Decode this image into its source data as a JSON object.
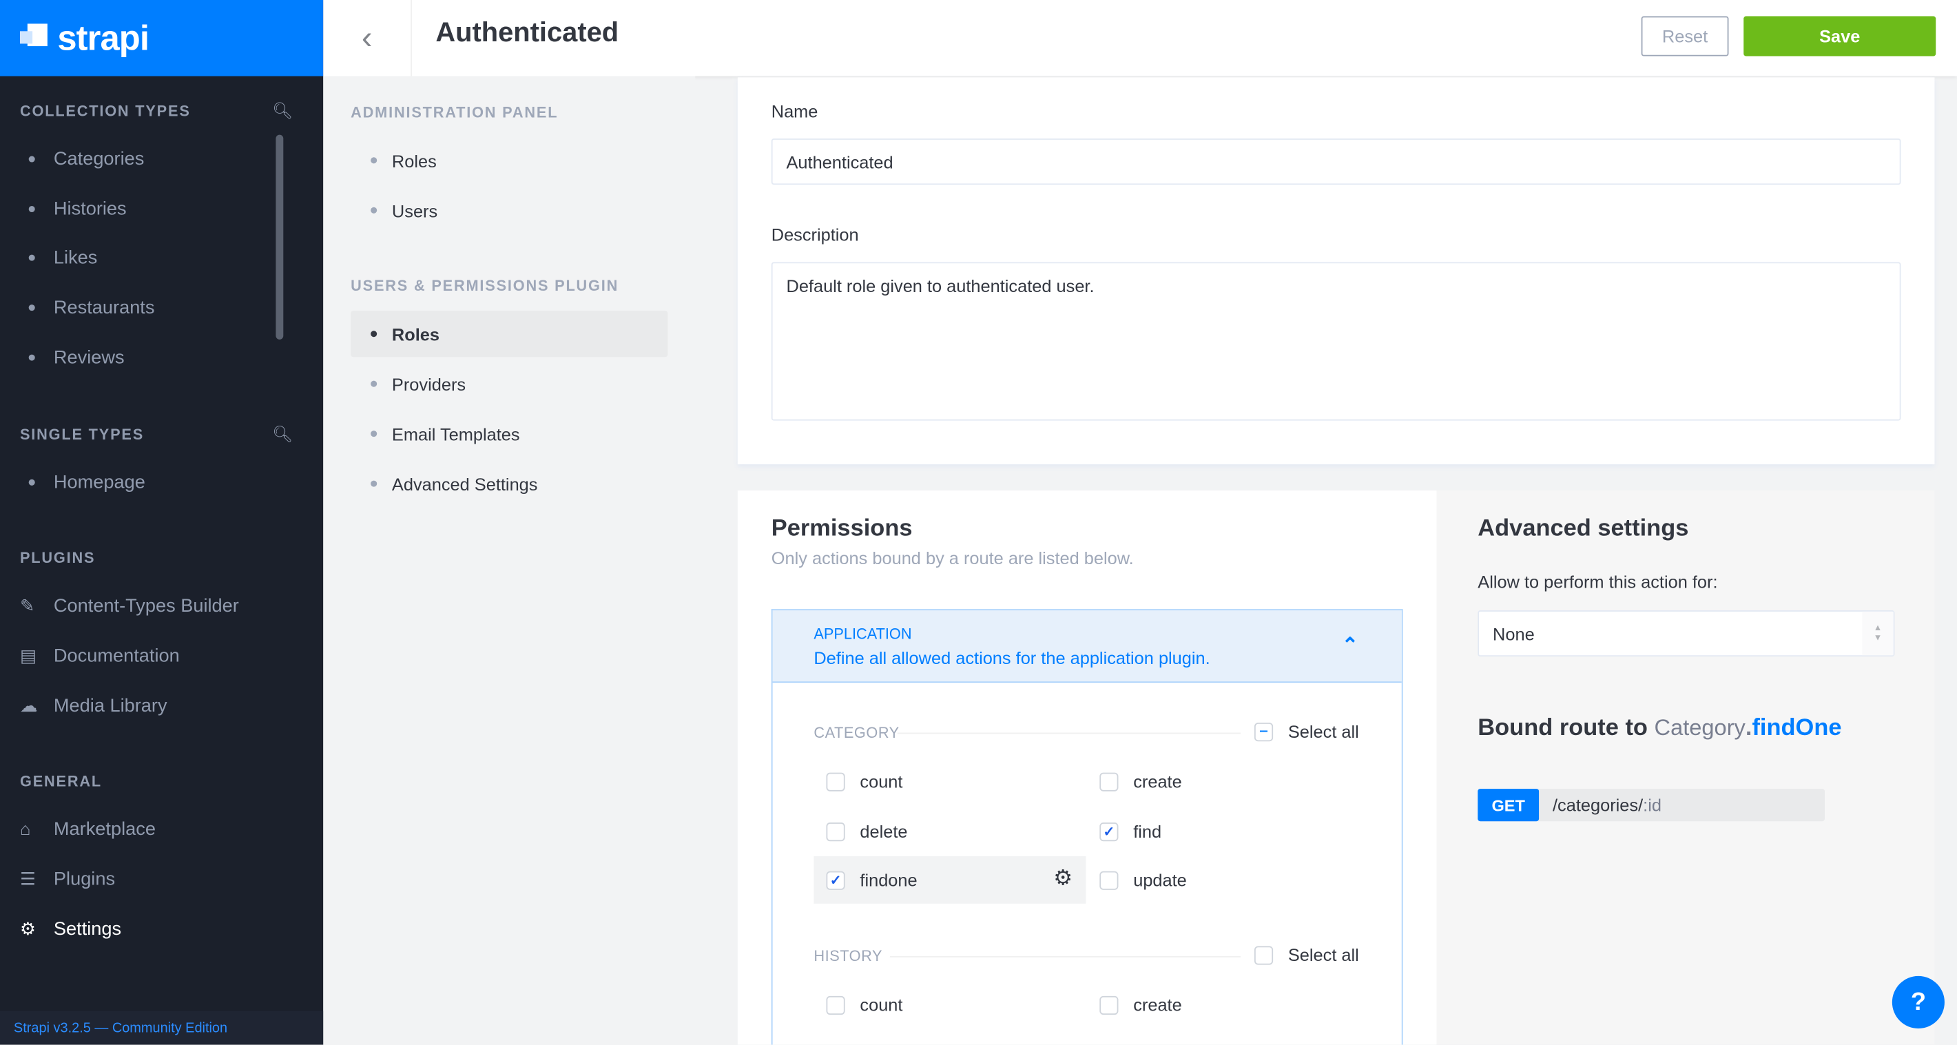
{
  "brand": {
    "name": "strapi",
    "color": "#007eff"
  },
  "sidebar": {
    "sections": [
      {
        "title": "COLLECTION TYPES",
        "items": [
          "Categories",
          "Histories",
          "Likes",
          "Restaurants",
          "Reviews"
        ]
      },
      {
        "title": "SINGLE TYPES",
        "items": [
          "Homepage"
        ]
      },
      {
        "title": "PLUGINS",
        "items": [
          "Content-Types Builder",
          "Documentation",
          "Media Library"
        ]
      },
      {
        "title": "GENERAL",
        "items": [
          "Marketplace",
          "Plugins",
          "Settings"
        ]
      }
    ],
    "active": "Settings",
    "footer": "Strapi v3.2.5 — Community Edition"
  },
  "header": {
    "title": "Authenticated",
    "reset": "Reset",
    "save": "Save",
    "save_color": "#6dbb1a"
  },
  "subnav": {
    "sections": [
      {
        "title": "ADMINISTRATION PANEL",
        "items": [
          "Roles",
          "Users"
        ]
      },
      {
        "title": "USERS & PERMISSIONS PLUGIN",
        "items": [
          "Roles",
          "Providers",
          "Email Templates",
          "Advanced Settings"
        ]
      }
    ],
    "active": "Roles"
  },
  "form": {
    "name_label": "Name",
    "name_value": "Authenticated",
    "description_label": "Description",
    "description_value": "Default role given to authenticated user."
  },
  "permissions": {
    "title": "Permissions",
    "subtitle": "Only actions bound by a route are listed below.",
    "plugin": {
      "name": "APPLICATION",
      "description": "Define all allowed actions for the application plugin.",
      "expanded": true
    },
    "groups": [
      {
        "name": "CATEGORY",
        "select_all": "Select all",
        "select_all_state": "indeterminate",
        "actions": [
          {
            "name": "count",
            "checked": false
          },
          {
            "name": "create",
            "checked": false
          },
          {
            "name": "delete",
            "checked": false
          },
          {
            "name": "find",
            "checked": true
          },
          {
            "name": "findone",
            "checked": true,
            "selected": true
          },
          {
            "name": "update",
            "checked": false
          }
        ]
      },
      {
        "name": "HISTORY",
        "select_all": "Select all",
        "select_all_state": "unchecked",
        "actions": [
          {
            "name": "count",
            "checked": false
          },
          {
            "name": "create",
            "checked": false
          }
        ]
      }
    ]
  },
  "advanced": {
    "title": "Advanced settings",
    "allow_label": "Allow to perform this action for:",
    "allow_value": "None",
    "bound_prefix": "Bound route to",
    "bound_controller": "Category",
    "bound_dot": ".",
    "bound_action": "findOne",
    "method": "GET",
    "path_prefix": "/categories/",
    ":id": ":id",
    "path_param": ":id"
  },
  "help": "?"
}
